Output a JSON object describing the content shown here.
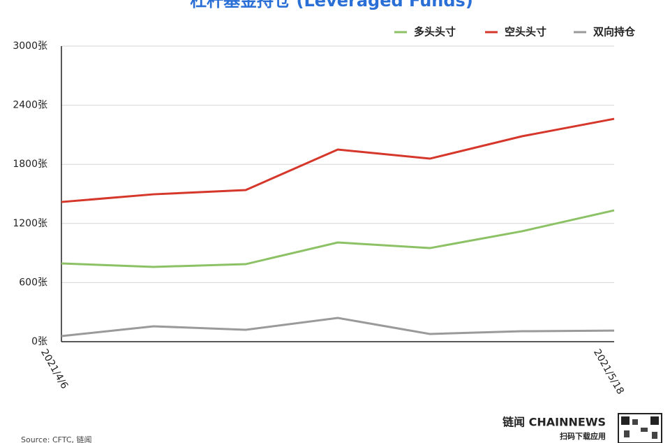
{
  "chart_data": {
    "type": "line",
    "title": "杠杆基金持仓 (Leveraged Funds)",
    "categories": [
      "2021/4/6",
      null,
      null,
      null,
      null,
      null,
      "2021/5/18"
    ],
    "series": [
      {
        "name": "多头头寸",
        "color": "#8cc265",
        "values": [
          794,
          759,
          787,
          1007,
          950,
          1121,
          1333
        ]
      },
      {
        "name": "空头头寸",
        "color": "#d5372b",
        "values": [
          1418,
          1496,
          1539,
          1950,
          1858,
          2085,
          2262
        ]
      },
      {
        "name": "双向持仓",
        "color": "#9a9a9a",
        "values": [
          57,
          156,
          121,
          241,
          78,
          106,
          113
        ]
      }
    ],
    "ylim": [
      0,
      3000
    ],
    "yticks": [
      {
        "value": 0,
        "label": "0张"
      },
      {
        "value": 600,
        "label": "600张"
      },
      {
        "value": 1200,
        "label": "1200张"
      },
      {
        "value": 1800,
        "label": "1800张"
      },
      {
        "value": 2400,
        "label": "2400张"
      },
      {
        "value": 3000,
        "label": "3000张"
      }
    ],
    "grid": true,
    "legend": "top-right",
    "source": "Source: CFTC, 链闻"
  },
  "branding": {
    "name": "链闻 CHAINNEWS",
    "tagline": "扫码下载应用"
  }
}
